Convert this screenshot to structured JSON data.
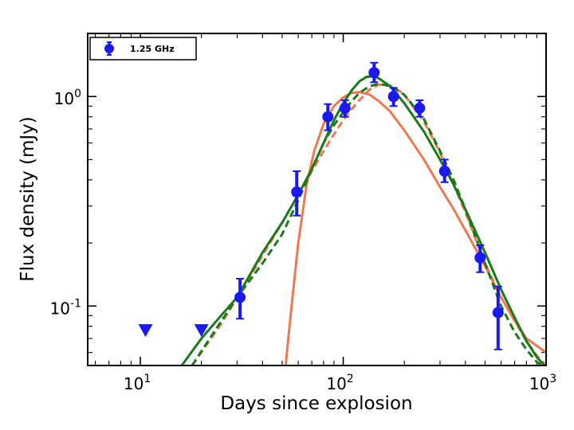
{
  "chart_data": {
    "type": "scatter",
    "xlabel": "Days since explosion",
    "ylabel": "Flux density (mJy)",
    "xscale": "log",
    "yscale": "log",
    "xlim": [
      5.5,
      1000
    ],
    "ylim": [
      0.052,
      2.0
    ],
    "x_ticks": [
      {
        "value": 10,
        "base": "10",
        "exp": "1"
      },
      {
        "value": 100,
        "base": "10",
        "exp": "2"
      },
      {
        "value": 1000,
        "base": "10",
        "exp": "3"
      }
    ],
    "y_ticks": [
      {
        "value": 0.1,
        "base": "10",
        "exp": "-1"
      },
      {
        "value": 1,
        "base": "10",
        "exp": "0"
      }
    ],
    "legend": {
      "placement": "top-left",
      "label": "1.25 GHz"
    },
    "colors": {
      "points": "#1a1aee",
      "solid_orange": "#f07850",
      "dashed_orange": "#f07850",
      "solid_green": "#1a7a1a",
      "dashed_green": "#1a7a1a"
    },
    "detections": [
      {
        "x": 31,
        "y": 0.11,
        "ylo": 0.087,
        "yhi": 0.135
      },
      {
        "x": 59,
        "y": 0.35,
        "ylo": 0.27,
        "yhi": 0.44
      },
      {
        "x": 84,
        "y": 0.8,
        "ylo": 0.69,
        "yhi": 0.92
      },
      {
        "x": 102,
        "y": 0.88,
        "ylo": 0.8,
        "yhi": 0.96
      },
      {
        "x": 142,
        "y": 1.3,
        "ylo": 1.17,
        "yhi": 1.45
      },
      {
        "x": 177,
        "y": 1.0,
        "ylo": 0.9,
        "yhi": 1.1
      },
      {
        "x": 238,
        "y": 0.88,
        "ylo": 0.8,
        "yhi": 0.96
      },
      {
        "x": 316,
        "y": 0.44,
        "ylo": 0.39,
        "yhi": 0.5
      },
      {
        "x": 473,
        "y": 0.17,
        "ylo": 0.145,
        "yhi": 0.195
      },
      {
        "x": 580,
        "y": 0.093,
        "ylo": 0.062,
        "yhi": 0.124
      }
    ],
    "upper_limits": [
      {
        "x": 10.6,
        "y": 0.077
      },
      {
        "x": 20,
        "y": 0.077
      }
    ],
    "models": [
      {
        "style": "solid-orange",
        "points": [
          [
            52,
            0.052
          ],
          [
            55,
            0.09
          ],
          [
            60,
            0.2
          ],
          [
            66,
            0.38
          ],
          [
            72,
            0.55
          ],
          [
            80,
            0.74
          ],
          [
            90,
            0.9
          ],
          [
            100,
            0.99
          ],
          [
            110,
            1.04
          ],
          [
            120,
            1.05
          ],
          [
            135,
            1.02
          ],
          [
            150,
            0.95
          ],
          [
            170,
            0.85
          ],
          [
            200,
            0.69
          ],
          [
            250,
            0.5
          ],
          [
            300,
            0.37
          ],
          [
            350,
            0.29
          ],
          [
            400,
            0.23
          ],
          [
            500,
            0.155
          ],
          [
            600,
            0.11
          ],
          [
            700,
            0.085
          ],
          [
            800,
            0.07
          ],
          [
            1000,
            0.06
          ]
        ]
      },
      {
        "style": "dashed-orange",
        "points": [
          [
            18,
            0.052
          ],
          [
            25,
            0.082
          ],
          [
            35,
            0.14
          ],
          [
            50,
            0.25
          ],
          [
            60,
            0.34
          ],
          [
            70,
            0.44
          ],
          [
            80,
            0.55
          ],
          [
            90,
            0.66
          ],
          [
            100,
            0.77
          ],
          [
            110,
            0.87
          ],
          [
            120,
            0.96
          ],
          [
            135,
            1.08
          ],
          [
            150,
            1.14
          ],
          [
            165,
            1.14
          ],
          [
            180,
            1.1
          ],
          [
            200,
            1.02
          ],
          [
            250,
            0.76
          ],
          [
            300,
            0.54
          ],
          [
            350,
            0.38
          ],
          [
            400,
            0.28
          ],
          [
            500,
            0.16
          ],
          [
            600,
            0.11
          ],
          [
            700,
            0.085
          ],
          [
            800,
            0.068
          ],
          [
            900,
            0.058
          ],
          [
            1000,
            0.052
          ]
        ]
      },
      {
        "style": "solid-green",
        "points": [
          [
            16,
            0.052
          ],
          [
            20,
            0.07
          ],
          [
            25,
            0.09
          ],
          [
            30,
            0.11
          ],
          [
            40,
            0.18
          ],
          [
            50,
            0.25
          ],
          [
            60,
            0.34
          ],
          [
            70,
            0.45
          ],
          [
            80,
            0.6
          ],
          [
            90,
            0.77
          ],
          [
            100,
            0.93
          ],
          [
            110,
            1.07
          ],
          [
            120,
            1.18
          ],
          [
            130,
            1.24
          ],
          [
            140,
            1.25
          ],
          [
            150,
            1.22
          ],
          [
            170,
            1.12
          ],
          [
            200,
            0.93
          ],
          [
            250,
            0.68
          ],
          [
            300,
            0.5
          ],
          [
            350,
            0.38
          ],
          [
            400,
            0.29
          ],
          [
            500,
            0.18
          ],
          [
            600,
            0.12
          ],
          [
            700,
            0.088
          ],
          [
            800,
            0.068
          ],
          [
            900,
            0.057
          ],
          [
            980,
            0.052
          ]
        ]
      },
      {
        "style": "dashed-green",
        "points": [
          [
            18,
            0.052
          ],
          [
            22,
            0.07
          ],
          [
            30,
            0.11
          ],
          [
            40,
            0.16
          ],
          [
            50,
            0.22
          ],
          [
            60,
            0.32
          ],
          [
            70,
            0.45
          ],
          [
            80,
            0.6
          ],
          [
            90,
            0.73
          ],
          [
            100,
            0.84
          ],
          [
            110,
            0.95
          ],
          [
            120,
            1.04
          ],
          [
            135,
            1.12
          ],
          [
            150,
            1.15
          ],
          [
            170,
            1.12
          ],
          [
            200,
            1.02
          ],
          [
            250,
            0.78
          ],
          [
            300,
            0.55
          ],
          [
            350,
            0.4
          ],
          [
            400,
            0.29
          ],
          [
            500,
            0.16
          ],
          [
            600,
            0.1
          ],
          [
            700,
            0.075
          ],
          [
            800,
            0.062
          ],
          [
            900,
            0.054
          ],
          [
            960,
            0.052
          ]
        ]
      }
    ]
  }
}
